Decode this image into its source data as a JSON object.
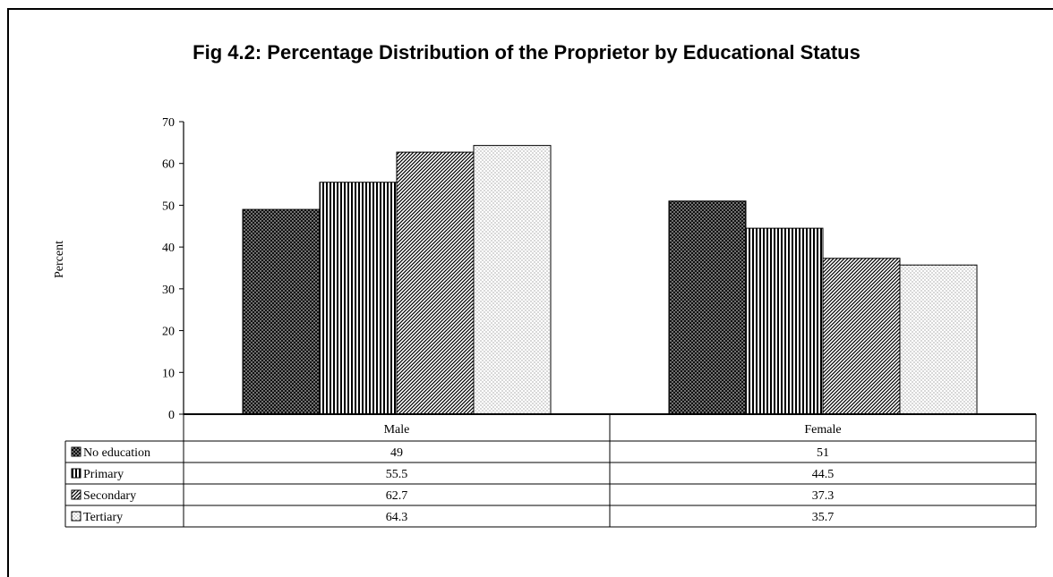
{
  "chart_data": {
    "type": "bar",
    "title": "Fig 4.2: Percentage Distribution of the Proprietor by Educational Status",
    "ylabel": "Percent",
    "xlabel": "",
    "categories": [
      "Male",
      "Female"
    ],
    "series": [
      {
        "name": "No education",
        "values": [
          49,
          51
        ],
        "pattern": "dots-dark"
      },
      {
        "name": "Primary",
        "values": [
          55.5,
          44.5
        ],
        "pattern": "vertical-lines"
      },
      {
        "name": "Secondary",
        "values": [
          62.7,
          37.3
        ],
        "pattern": "diagonal-lines"
      },
      {
        "name": "Tertiary",
        "values": [
          64.3,
          35.7
        ],
        "pattern": "dots-light"
      }
    ],
    "ylim": [
      0,
      70
    ],
    "yticks": [
      0,
      10,
      20,
      30,
      40,
      50,
      60,
      70
    ],
    "data_table": true,
    "grid": false
  }
}
